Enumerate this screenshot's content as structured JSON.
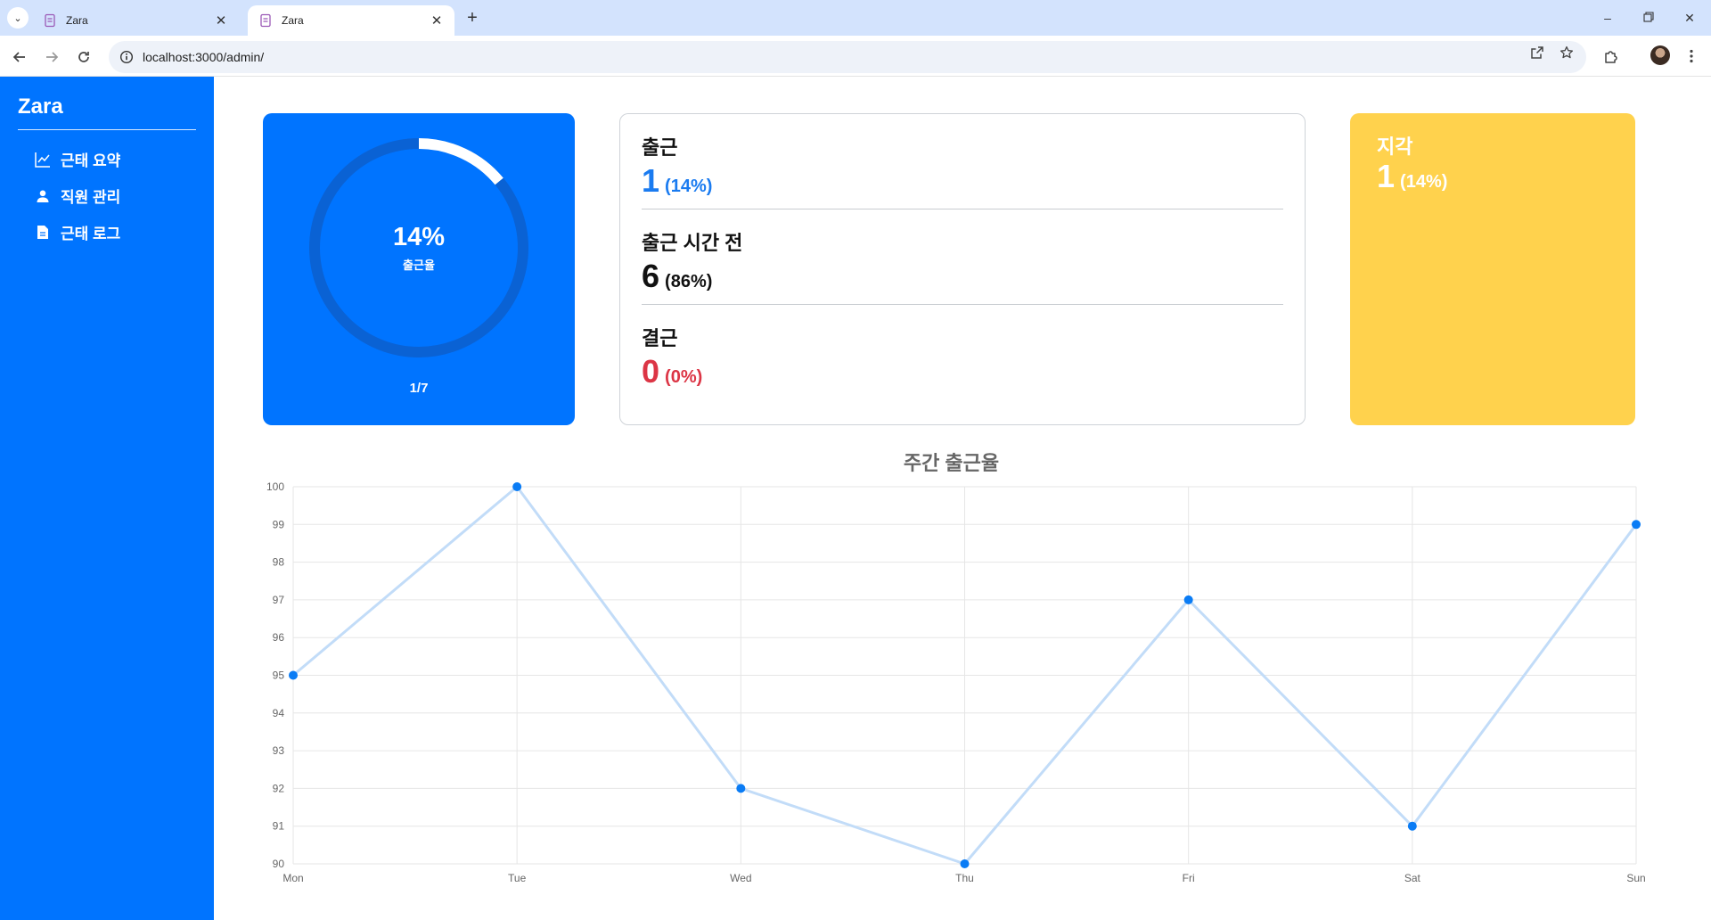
{
  "browser": {
    "tabs": [
      {
        "title": "Zara",
        "active": false
      },
      {
        "title": "Zara",
        "active": true
      }
    ],
    "url": "localhost:3000/admin/"
  },
  "sidebar": {
    "brand": "Zara",
    "items": [
      {
        "label": "근태 요약",
        "icon": "chart-line-icon"
      },
      {
        "label": "직원 관리",
        "icon": "user-icon"
      },
      {
        "label": "근태 로그",
        "icon": "document-icon"
      }
    ]
  },
  "attendance_rate": {
    "percent_text": "14%",
    "percent_value": 14,
    "label": "출근율",
    "fraction": "1/7"
  },
  "stats": [
    {
      "label": "출근",
      "count": "1",
      "percent": "(14%)",
      "color": "#1a7bf0"
    },
    {
      "label": "출근 시간 전",
      "count": "6",
      "percent": "(86%)",
      "color": "#111111"
    },
    {
      "label": "결근",
      "count": "0",
      "percent": "(0%)",
      "color": "#dc3545"
    }
  ],
  "late": {
    "label": "지각",
    "count": "1",
    "percent": "(14%)"
  },
  "colors": {
    "primary": "#0074ff",
    "late_card": "#ffd24d",
    "absent": "#dc3545",
    "line": "#c2dcf8",
    "point": "#0a7cf5"
  },
  "chart_data": {
    "type": "line",
    "title": "주간 출근율",
    "categories": [
      "Mon",
      "Tue",
      "Wed",
      "Thu",
      "Fri",
      "Sat",
      "Sun"
    ],
    "values": [
      95,
      100,
      92,
      90,
      97,
      91,
      99
    ],
    "ylim": [
      90,
      100
    ],
    "yticks": [
      90,
      91,
      92,
      93,
      94,
      95,
      96,
      97,
      98,
      99,
      100
    ],
    "grid": true,
    "legend": "none"
  }
}
